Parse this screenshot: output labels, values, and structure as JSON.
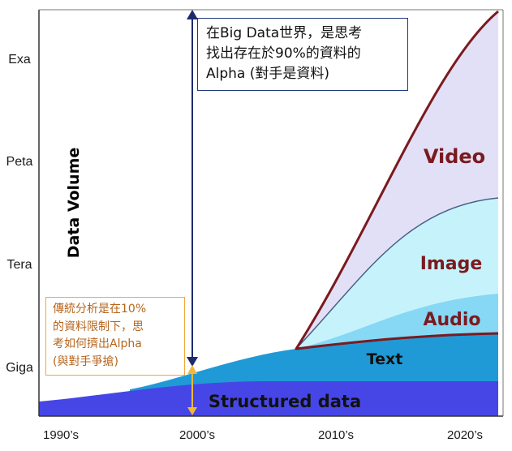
{
  "chart_data": {
    "type": "area",
    "ylabel": "Data Volume",
    "y_ticks": [
      "Giga",
      "Tera",
      "Peta",
      "Exa"
    ],
    "x_ticks": [
      "1990’s",
      "2000’s",
      "2010’s",
      "2020’s"
    ],
    "series": [
      {
        "name": "Structured data",
        "color": "#4646e6",
        "values": [
          0.05,
          0.22,
          0.28,
          0.3
        ]
      },
      {
        "name": "Text",
        "color": "#1f9ad6",
        "values": [
          0.0,
          0.05,
          0.6,
          0.8
        ]
      },
      {
        "name": "Audio",
        "color": "#86d8f5",
        "values": [
          0.0,
          0.0,
          0.0,
          0.45
        ]
      },
      {
        "name": "Image",
        "color": "#c6f3fb",
        "values": [
          0.0,
          0.0,
          0.0,
          1.4
        ]
      },
      {
        "name": "Video",
        "color": "#e2e0f7",
        "values": [
          0.0,
          0.0,
          0.0,
          1.4
        ]
      }
    ],
    "colors": {
      "outline": "#7a1a1f",
      "arrow_dark": "#1f2a6e",
      "arrow_orange": "#f5b73b"
    }
  },
  "annotations": {
    "top_box": [
      "在Big Data世界，是思考",
      "找出存在於90%的資料的",
      "Alpha (對手是資料)"
    ],
    "bottom_box": [
      "傳統分析是在10%",
      "的資料限制下，思",
      "考如何擠出Alpha",
      "(與對手爭搶)"
    ]
  }
}
